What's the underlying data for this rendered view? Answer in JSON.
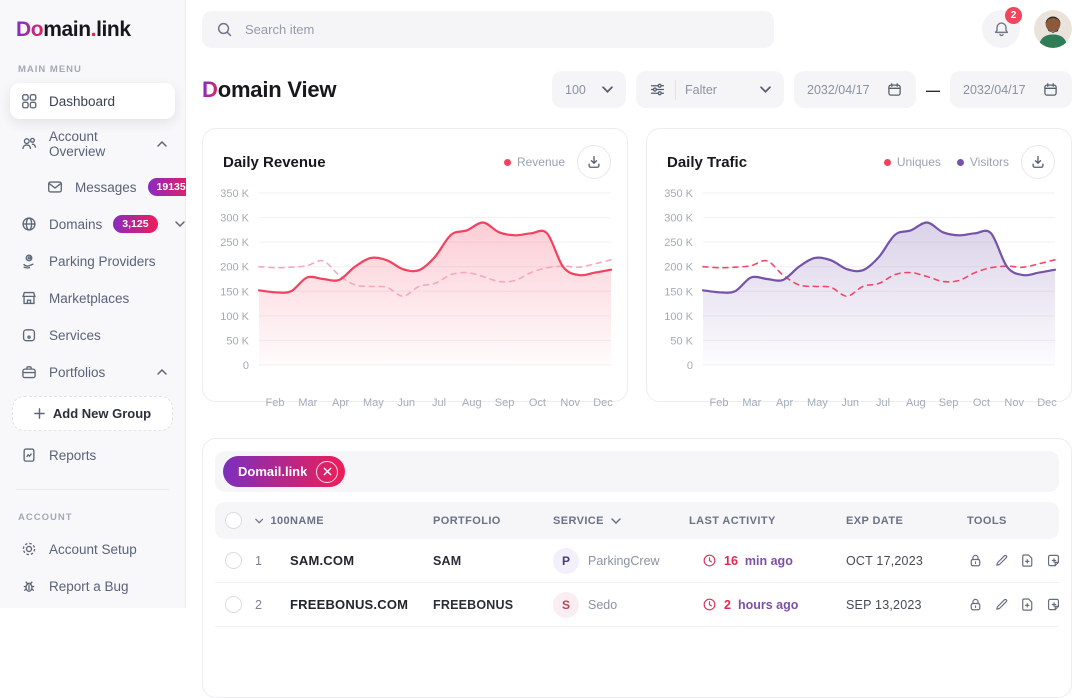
{
  "app": {
    "logo_prefix": "Do",
    "logo_mid": "main",
    "logo_dot": ".",
    "logo_suffix": "link"
  },
  "topbar": {
    "search_placeholder": "Search item",
    "notification_count": "2"
  },
  "sidebar": {
    "section_main": "MAIN MENU",
    "section_account": "ACCOUNT",
    "items": {
      "dashboard": "Dashboard",
      "account_overview": "Account Overview",
      "messages": "Messages",
      "messages_badge": "19135",
      "domains": "Domains",
      "domains_badge": "3,125",
      "parking": "Parking Providers",
      "marketplaces": "Marketplaces",
      "services": "Services",
      "portfolios": "Portfolios",
      "add_group": "Add New Group",
      "reports": "Reports",
      "account_setup": "Account Setup",
      "report_bug": "Report a Bug"
    }
  },
  "page": {
    "title_first": "D",
    "title_rest": "omain View",
    "page_size": "100",
    "filter_label": "Falter",
    "date_from": "2032/04/17",
    "date_to": "2032/04/17"
  },
  "chart_data": [
    {
      "type": "line",
      "title": "Daily Revenue",
      "legend": [
        {
          "label": "Revenue",
          "color": "#F4415F"
        }
      ],
      "x_labels": [
        "Feb",
        "Mar",
        "Apr",
        "May",
        "Jun",
        "Jul",
        "Aug",
        "Sep",
        "Oct",
        "Nov",
        "Dec"
      ],
      "y_ticks": [
        0,
        50,
        100,
        150,
        200,
        250,
        300,
        350
      ],
      "y_tick_labels": [
        "0",
        "50 K",
        "100 K",
        "150 K",
        "200 K",
        "250 K",
        "300 K",
        "350 K"
      ],
      "ylim": [
        0,
        378
      ],
      "grid": true,
      "series": [
        {
          "name": "Revenue",
          "style": "solid",
          "color": "#F4415F",
          "fill": true,
          "values": [
            152,
            148,
            150,
            178,
            175,
            173,
            200,
            218,
            213,
            195,
            193,
            220,
            265,
            274,
            290,
            270,
            264,
            268,
            268,
            200,
            183,
            188,
            194
          ]
        },
        {
          "name": "Revenue (dashed)",
          "style": "dashed",
          "color": "#F6A9B9",
          "fill": false,
          "values": [
            200,
            198,
            199,
            202,
            212,
            183,
            163,
            160,
            158,
            140,
            160,
            166,
            184,
            188,
            180,
            170,
            172,
            188,
            198,
            201,
            199,
            206,
            214
          ]
        }
      ]
    },
    {
      "type": "line",
      "title": "Daily Trafic",
      "legend": [
        {
          "label": "Uniques",
          "color": "#F4415F"
        },
        {
          "label": "Visitors",
          "color": "#7553A9"
        }
      ],
      "x_labels": [
        "Feb",
        "Mar",
        "Apr",
        "May",
        "Jun",
        "Jul",
        "Aug",
        "Sep",
        "Oct",
        "Nov",
        "Dec"
      ],
      "y_ticks": [
        0,
        50,
        100,
        150,
        200,
        250,
        300,
        350
      ],
      "y_tick_labels": [
        "0",
        "50 K",
        "100 K",
        "150 K",
        "200 K",
        "250 K",
        "300 K",
        "350 K"
      ],
      "ylim": [
        0,
        378
      ],
      "grid": true,
      "series": [
        {
          "name": "Visitors",
          "style": "solid",
          "color": "#7553A9",
          "fill": true,
          "values": [
            152,
            148,
            150,
            178,
            175,
            173,
            200,
            218,
            213,
            195,
            193,
            220,
            265,
            274,
            290,
            270,
            264,
            268,
            268,
            200,
            183,
            188,
            194
          ]
        },
        {
          "name": "Uniques",
          "style": "dashed",
          "color": "#F5466A",
          "fill": false,
          "values": [
            200,
            198,
            199,
            202,
            212,
            183,
            163,
            160,
            158,
            140,
            160,
            166,
            184,
            188,
            180,
            170,
            172,
            188,
            198,
            201,
            199,
            206,
            214
          ]
        }
      ]
    }
  ],
  "table": {
    "chip": "Domail.link",
    "headers": {
      "count": "100",
      "name": "NAME",
      "portfolio": "PORTFOLIO",
      "service": "SERVICE",
      "activity": "LAST ACTIVITY",
      "exp": "EXP DATE",
      "tools": "TOOLS"
    },
    "rows": [
      {
        "num": "1",
        "name": "SAM.COM",
        "portfolio": "SAM",
        "service_initial": "P",
        "service": "ParkingCrew",
        "activity_value": "16",
        "activity_unit": "min ago",
        "exp_date": "OCT 17,2023"
      },
      {
        "num": "2",
        "name": "FREEBONUS.COM",
        "portfolio": "FREEBONUS",
        "service_initial": "S",
        "service": "Sedo",
        "activity_value": "2",
        "activity_unit": "hours ago",
        "exp_date": "SEP 13,2023"
      }
    ]
  },
  "colors": {
    "accent_red": "#F4415F",
    "accent_purple": "#7553A9",
    "gradient_start": "#7B2FBE",
    "gradient_end": "#EF1E56",
    "badge_red": "#F3455E"
  }
}
